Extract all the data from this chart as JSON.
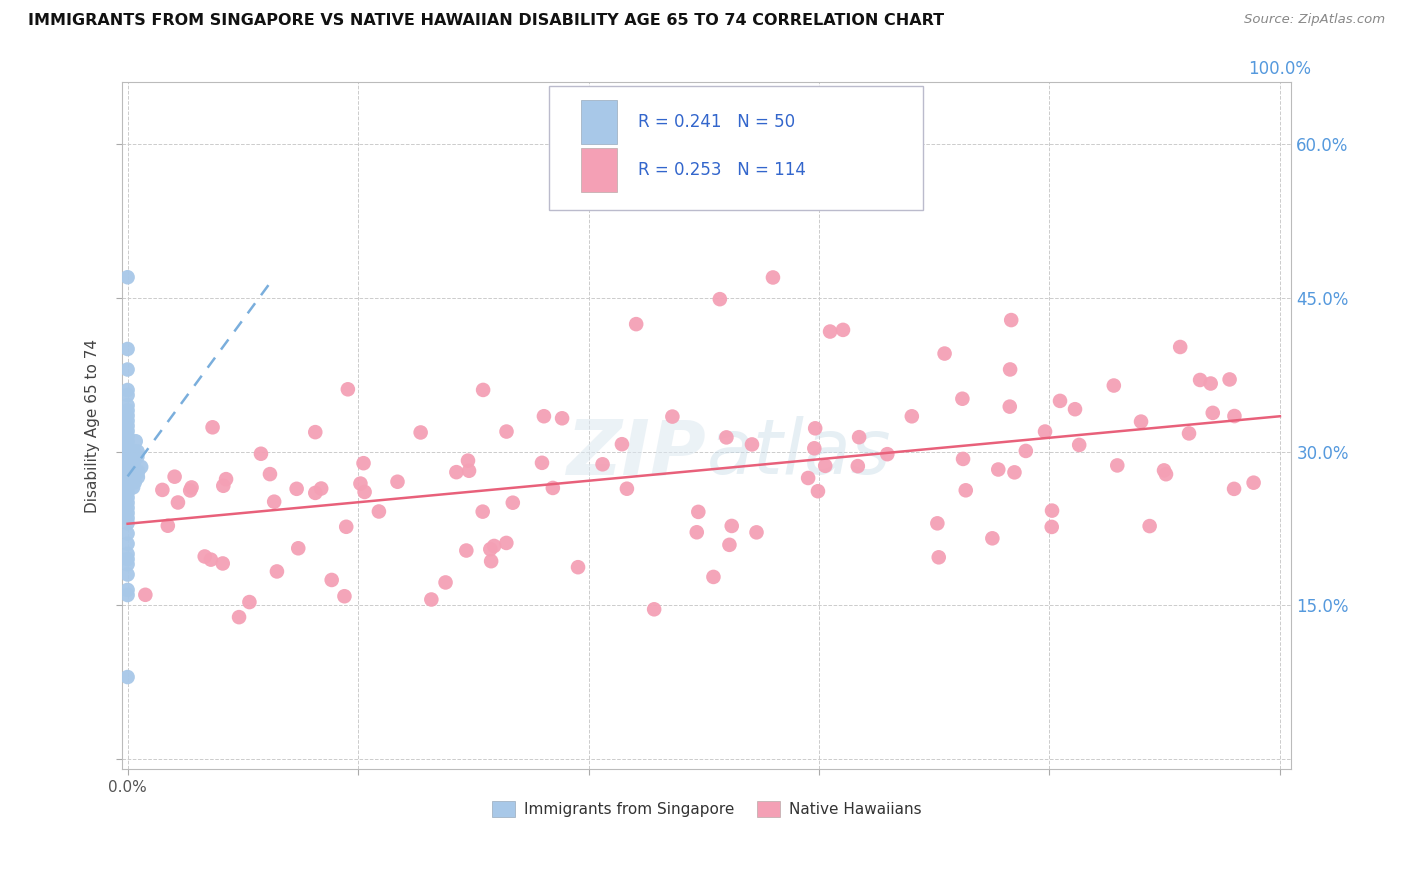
{
  "title": "IMMIGRANTS FROM SINGAPORE VS NATIVE HAWAIIAN DISABILITY AGE 65 TO 74 CORRELATION CHART",
  "source": "Source: ZipAtlas.com",
  "ylabel": "Disability Age 65 to 74",
  "singapore_R": "0.241",
  "singapore_N": "50",
  "hawaiian_R": "0.253",
  "hawaiian_N": "114",
  "singapore_color": "#a8c8e8",
  "hawaiian_color": "#f4a0b5",
  "singapore_trend_color": "#7aaedc",
  "hawaiian_trend_color": "#e8607a",
  "right_tick_color": "#5599dd",
  "watermark": "ZIPatlas",
  "xlim": [
    -0.005,
    1.01
  ],
  "ylim": [
    -0.01,
    0.66
  ],
  "y_ticks": [
    0.0,
    0.15,
    0.3,
    0.45,
    0.6
  ],
  "right_y_labels": [
    "",
    "15.0%",
    "30.0%",
    "45.0%",
    "60.0%"
  ],
  "x_left_label": "0.0%",
  "x_right_label": "100.0%",
  "legend_text_color": "#3366cc",
  "legend_R_eq_color": "#333333"
}
